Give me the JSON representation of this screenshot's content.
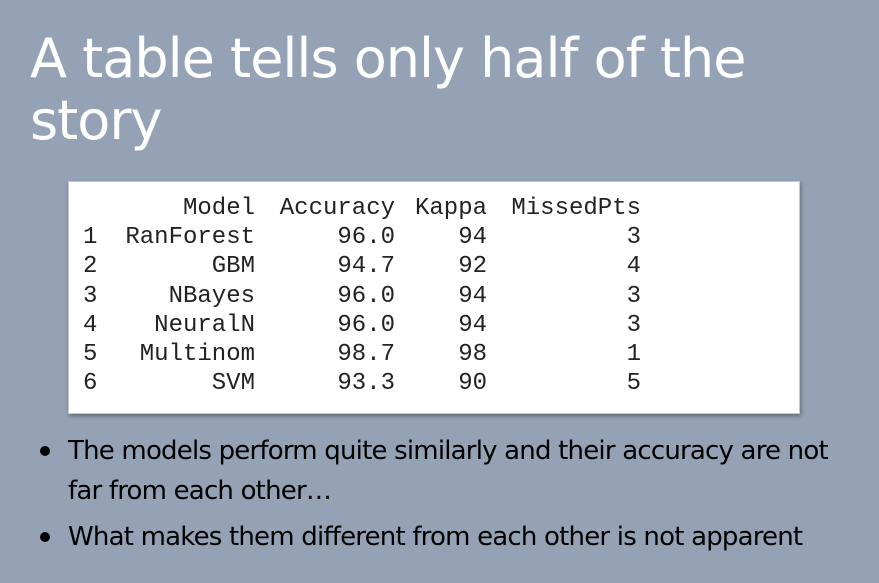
{
  "slide": {
    "title": "A table tells only half of the story"
  },
  "table": {
    "headers": [
      "",
      "Model",
      "Accuracy",
      "Kappa",
      "MissedPts"
    ],
    "rows": [
      [
        "1",
        "RanForest",
        "96.0",
        "94",
        "3"
      ],
      [
        "2",
        "GBM",
        "94.7",
        "92",
        "4"
      ],
      [
        "3",
        "NBayes",
        "96.0",
        "94",
        "3"
      ],
      [
        "4",
        "NeuralN",
        "96.0",
        "94",
        "3"
      ],
      [
        "5",
        "Multinom",
        "98.7",
        "98",
        "1"
      ],
      [
        "6",
        "SVM",
        "93.3",
        "90",
        "5"
      ]
    ]
  },
  "bullets": [
    "The models perform quite similarly and their accuracy are not far from each other…",
    "What makes them different from each other is not apparent"
  ],
  "colors": {
    "background": "#95a2b5",
    "title": "#ffffff",
    "table_panel": "#ffffff",
    "body_text": "#000000"
  }
}
